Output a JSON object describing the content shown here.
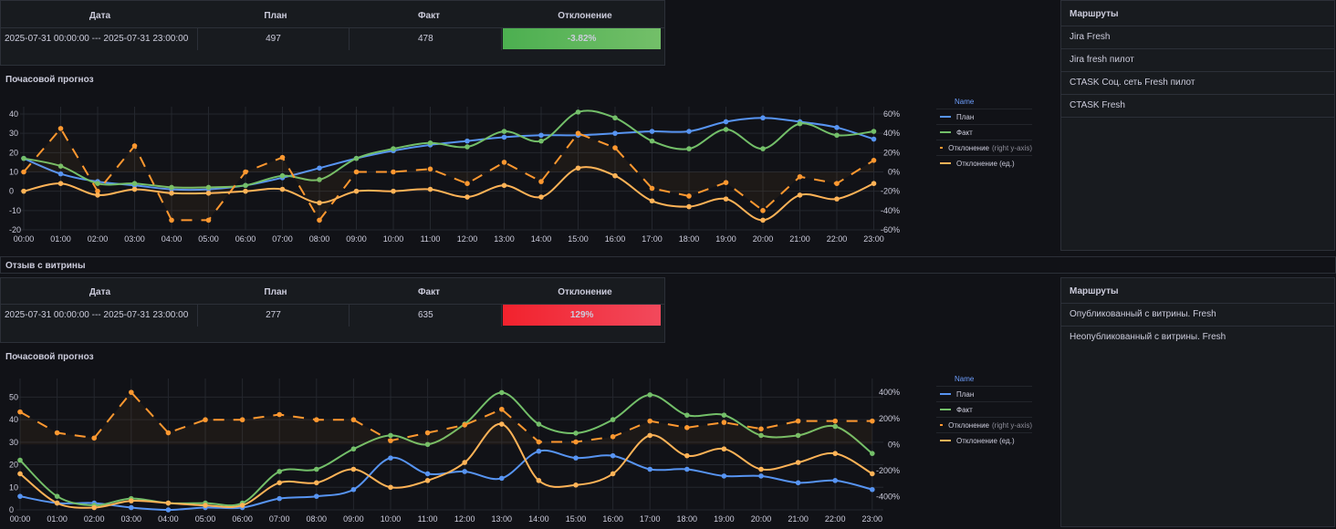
{
  "section1": {
    "table": {
      "headers": [
        "Дата",
        "План",
        "Факт",
        "Отклонение"
      ],
      "row": {
        "date": "2025-07-31 00:00:00 --- 2025-07-31 23:00:00",
        "plan": "497",
        "fact": "478",
        "deviation": "-3.82%"
      },
      "deviation_color": "#4caf50"
    },
    "chart_title": "Почасовой прогноз",
    "routes": {
      "header": "Маршруты",
      "items": [
        "Jira Fresh",
        "Jira fresh пилот",
        "CTASK Соц. сеть Fresh пилот",
        "CTASK Fresh"
      ]
    }
  },
  "row_separator": "Отзыв с витрины",
  "section2": {
    "table": {
      "headers": [
        "Дата",
        "План",
        "Факт",
        "Отклонение"
      ],
      "row": {
        "date": "2025-07-31 00:00:00 --- 2025-07-31 23:00:00",
        "plan": "277",
        "fact": "635",
        "deviation": "129%"
      },
      "deviation_color": "#f2222d"
    },
    "chart_title": "Почасовой прогноз",
    "routes": {
      "header": "Маршруты",
      "items": [
        "Опубликованный с витрины. Fresh",
        "Неопубликованный с витрины. Fresh"
      ]
    }
  },
  "legend": {
    "title": "Name",
    "items": [
      {
        "label": "План",
        "suffix": "",
        "color": "#5794f2",
        "style": "solid"
      },
      {
        "label": "Факт",
        "suffix": "",
        "color": "#73bf69",
        "style": "solid"
      },
      {
        "label": "Отклонение",
        "suffix": "(right y-axis)",
        "color": "#ff9830",
        "style": "dashed"
      },
      {
        "label": "Отклонение (ед.)",
        "suffix": "",
        "color": "#ffb357",
        "style": "solid"
      }
    ]
  },
  "chart_data": [
    {
      "type": "line",
      "title": "Почасовой прогноз",
      "x": [
        "00:00",
        "01:00",
        "02:00",
        "03:00",
        "04:00",
        "05:00",
        "06:00",
        "07:00",
        "08:00",
        "09:00",
        "10:00",
        "11:00",
        "12:00",
        "13:00",
        "14:00",
        "15:00",
        "16:00",
        "17:00",
        "18:00",
        "19:00",
        "20:00",
        "21:00",
        "22:00",
        "23:00"
      ],
      "ylim": [
        -20,
        40
      ],
      "yticks": [
        -20,
        -10,
        0,
        10,
        20,
        30,
        40
      ],
      "y2lim": [
        -60,
        60
      ],
      "y2ticks": [
        -60,
        -40,
        -20,
        0,
        20,
        40,
        60
      ],
      "y2unit": "%",
      "series": [
        {
          "name": "План",
          "axis": "left",
          "color": "#5794f2",
          "values": [
            17,
            9,
            5,
            3,
            1,
            1,
            3,
            7,
            12,
            17,
            21,
            24,
            26,
            28,
            29,
            29,
            30,
            31,
            31,
            36,
            38,
            36,
            33,
            27
          ]
        },
        {
          "name": "Факт",
          "axis": "left",
          "color": "#73bf69",
          "values": [
            17,
            13,
            4,
            4,
            2,
            2,
            3,
            8,
            6,
            17,
            22,
            25,
            23,
            31,
            26,
            41,
            38,
            26,
            22,
            32,
            22,
            35,
            29,
            31
          ]
        },
        {
          "name": "Отклонение",
          "axis": "right",
          "color": "#ff9830",
          "dashed": true,
          "values": [
            0,
            45,
            -20,
            27,
            -50,
            -50,
            0,
            15,
            -50,
            0,
            0,
            3,
            -12,
            10,
            -10,
            40,
            25,
            -17,
            -25,
            -11,
            -40,
            -5,
            -12,
            12
          ]
        },
        {
          "name": "Отклонение (ед.)",
          "axis": "left",
          "color": "#ffb357",
          "values": [
            0,
            4,
            -2,
            1,
            -1,
            -1,
            0,
            1,
            -6,
            0,
            0,
            1,
            -3,
            3,
            -3,
            12,
            8,
            -5,
            -8,
            -4,
            -15,
            -2,
            -4,
            4
          ]
        }
      ]
    },
    {
      "type": "line",
      "title": "Почасовой прогноз",
      "x": [
        "00:00",
        "01:00",
        "02:00",
        "03:00",
        "04:00",
        "05:00",
        "06:00",
        "07:00",
        "08:00",
        "09:00",
        "10:00",
        "11:00",
        "12:00",
        "13:00",
        "14:00",
        "15:00",
        "16:00",
        "17:00",
        "18:00",
        "19:00",
        "20:00",
        "21:00",
        "22:00",
        "23:00"
      ],
      "ylim": [
        0,
        55
      ],
      "yticks": [
        0,
        10,
        20,
        30,
        40,
        50
      ],
      "y2lim": [
        -500,
        450
      ],
      "y2ticks": [
        -400,
        -200,
        0,
        200,
        400
      ],
      "y2unit": "%",
      "series": [
        {
          "name": "План",
          "axis": "left",
          "color": "#5794f2",
          "values": [
            6,
            3,
            3,
            1,
            0,
            1,
            1,
            5,
            6,
            9,
            23,
            16,
            17,
            14,
            26,
            23,
            24,
            18,
            18,
            15,
            15,
            12,
            13,
            9
          ]
        },
        {
          "name": "Факт",
          "axis": "left",
          "color": "#73bf69",
          "values": [
            22,
            6,
            2,
            5,
            3,
            3,
            3,
            17,
            18,
            27,
            33,
            29,
            38,
            52,
            38,
            34,
            40,
            51,
            42,
            42,
            33,
            33,
            37,
            25
          ]
        },
        {
          "name": "Отклонение",
          "axis": "right",
          "color": "#ff9830",
          "dashed": true,
          "values": [
            250,
            90,
            50,
            400,
            90,
            190,
            190,
            230,
            190,
            190,
            30,
            90,
            150,
            270,
            20,
            20,
            60,
            180,
            130,
            170,
            120,
            180,
            180,
            180
          ]
        },
        {
          "name": "Отклонение (ед.)",
          "axis": "left",
          "color": "#ffb357",
          "values": [
            16,
            3,
            1,
            4,
            3,
            2,
            2,
            12,
            12,
            18,
            10,
            13,
            21,
            38,
            13,
            11,
            16,
            33,
            24,
            27,
            18,
            21,
            25,
            16
          ]
        }
      ]
    }
  ]
}
